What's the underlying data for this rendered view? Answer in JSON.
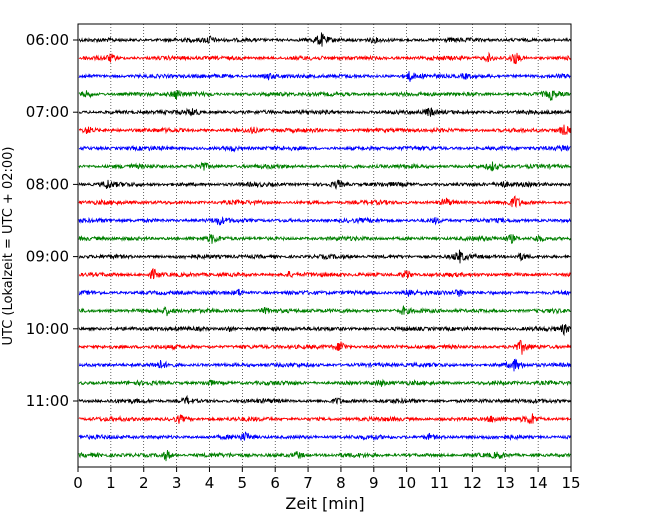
{
  "chart_data": {
    "type": "line",
    "title": "",
    "xlabel": "Zeit  [min]",
    "ylabel": "UTC (Lokalzeit = UTC + 02:00)",
    "xlim": [
      0,
      15
    ],
    "x_ticks": [
      0,
      1,
      2,
      3,
      4,
      5,
      6,
      7,
      8,
      9,
      10,
      11,
      12,
      13,
      14,
      15
    ],
    "y_tick_labels": [
      "06:00",
      "07:00",
      "08:00",
      "09:00",
      "10:00",
      "11:00"
    ],
    "grid": "vertical dotted lines at each minute",
    "trace_interval_minutes": 15,
    "trace_colors": [
      "#000000",
      "#ff0000",
      "#0000ff",
      "#008000"
    ],
    "traces": [
      {
        "start": "06:00",
        "color": "#000000",
        "events": [
          {
            "t": 4.0,
            "amp": 0.5
          },
          {
            "t": 7.4,
            "amp": 0.8
          },
          {
            "t": 9.0,
            "amp": 0.3
          }
        ]
      },
      {
        "start": "06:15",
        "color": "#ff0000",
        "events": [
          {
            "t": 1.0,
            "amp": 0.5
          },
          {
            "t": 12.5,
            "amp": 0.45
          },
          {
            "t": 13.3,
            "amp": 0.8
          }
        ]
      },
      {
        "start": "06:30",
        "color": "#0000ff",
        "events": [
          {
            "t": 5.8,
            "amp": 0.4
          },
          {
            "t": 10.1,
            "amp": 0.6
          },
          {
            "t": 11.8,
            "amp": 0.3
          }
        ]
      },
      {
        "start": "06:45",
        "color": "#008000",
        "events": [
          {
            "t": 0.3,
            "amp": 0.5
          },
          {
            "t": 3.0,
            "amp": 0.6
          },
          {
            "t": 14.4,
            "amp": 0.6
          }
        ]
      },
      {
        "start": "07:00",
        "color": "#000000",
        "events": [
          {
            "t": 3.5,
            "amp": 0.5
          },
          {
            "t": 10.7,
            "amp": 0.6
          }
        ]
      },
      {
        "start": "07:15",
        "color": "#ff0000",
        "events": [
          {
            "t": 0.3,
            "amp": 0.5
          },
          {
            "t": 5.3,
            "amp": 0.4
          },
          {
            "t": 14.8,
            "amp": 0.6
          }
        ]
      },
      {
        "start": "07:30",
        "color": "#0000ff",
        "events": [
          {
            "t": 4.7,
            "amp": 0.3
          },
          {
            "t": 14.8,
            "amp": 0.35
          }
        ]
      },
      {
        "start": "07:45",
        "color": "#008000",
        "events": [
          {
            "t": 3.8,
            "amp": 0.6
          },
          {
            "t": 12.6,
            "amp": 0.5
          }
        ]
      },
      {
        "start": "08:00",
        "color": "#000000",
        "events": [
          {
            "t": 0.9,
            "amp": 0.5
          },
          {
            "t": 7.9,
            "amp": 0.55
          },
          {
            "t": 12.9,
            "amp": 0.45
          }
        ]
      },
      {
        "start": "08:15",
        "color": "#ff0000",
        "events": [
          {
            "t": 11.2,
            "amp": 0.55
          },
          {
            "t": 13.3,
            "amp": 0.7
          }
        ]
      },
      {
        "start": "08:30",
        "color": "#0000ff",
        "events": [
          {
            "t": 4.3,
            "amp": 0.45
          },
          {
            "t": 10.9,
            "amp": 0.35
          }
        ]
      },
      {
        "start": "08:45",
        "color": "#008000",
        "events": [
          {
            "t": 4.1,
            "amp": 0.5
          },
          {
            "t": 13.2,
            "amp": 0.55
          },
          {
            "t": 14.0,
            "amp": 0.45
          }
        ]
      },
      {
        "start": "09:00",
        "color": "#000000",
        "events": [
          {
            "t": 11.6,
            "amp": 0.75
          },
          {
            "t": 13.5,
            "amp": 0.45
          }
        ]
      },
      {
        "start": "09:15",
        "color": "#ff0000",
        "events": [
          {
            "t": 2.3,
            "amp": 0.75
          },
          {
            "t": 6.4,
            "amp": 0.4
          },
          {
            "t": 10.0,
            "amp": 0.7
          }
        ]
      },
      {
        "start": "09:30",
        "color": "#0000ff",
        "events": [
          {
            "t": 4.9,
            "amp": 0.4
          },
          {
            "t": 10.1,
            "amp": 0.7
          },
          {
            "t": 11.6,
            "amp": 0.4
          }
        ]
      },
      {
        "start": "09:45",
        "color": "#008000",
        "events": [
          {
            "t": 2.7,
            "amp": 0.5
          },
          {
            "t": 5.7,
            "amp": 0.35
          },
          {
            "t": 9.9,
            "amp": 0.5
          }
        ]
      },
      {
        "start": "10:00",
        "color": "#000000",
        "events": [
          {
            "t": 4.6,
            "amp": 0.4
          },
          {
            "t": 14.8,
            "amp": 0.6
          }
        ]
      },
      {
        "start": "10:15",
        "color": "#ff0000",
        "events": [
          {
            "t": 8.0,
            "amp": 0.9
          },
          {
            "t": 13.5,
            "amp": 0.8
          }
        ]
      },
      {
        "start": "10:30",
        "color": "#0000ff",
        "events": [
          {
            "t": 2.5,
            "amp": 0.4
          },
          {
            "t": 13.3,
            "amp": 0.8
          }
        ]
      },
      {
        "start": "10:45",
        "color": "#008000",
        "events": [
          {
            "t": 4.0,
            "amp": 0.35
          },
          {
            "t": 9.2,
            "amp": 0.4
          }
        ]
      },
      {
        "start": "11:00",
        "color": "#000000",
        "events": [
          {
            "t": 3.3,
            "amp": 0.5
          },
          {
            "t": 7.9,
            "amp": 0.35
          }
        ]
      },
      {
        "start": "11:15",
        "color": "#ff0000",
        "events": [
          {
            "t": 3.1,
            "amp": 0.5
          },
          {
            "t": 12.6,
            "amp": 0.45
          },
          {
            "t": 13.8,
            "amp": 0.7
          }
        ]
      },
      {
        "start": "11:30",
        "color": "#0000ff",
        "events": [
          {
            "t": 5.1,
            "amp": 0.5
          },
          {
            "t": 10.7,
            "amp": 0.35
          }
        ]
      },
      {
        "start": "11:45",
        "color": "#008000",
        "events": [
          {
            "t": 2.7,
            "amp": 0.75
          },
          {
            "t": 6.7,
            "amp": 0.5
          },
          {
            "t": 12.8,
            "amp": 0.35
          }
        ]
      }
    ]
  }
}
